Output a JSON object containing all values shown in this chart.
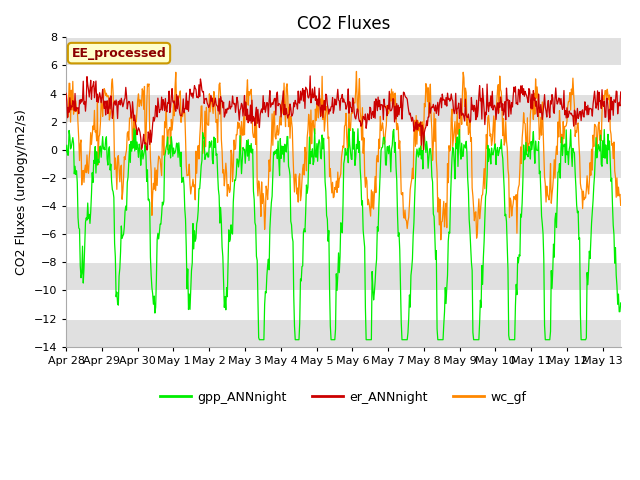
{
  "title": "CO2 Fluxes",
  "ylabel": "CO2 Fluxes (urology/m2/s)",
  "ylim": [
    -14,
    8
  ],
  "yticks": [
    -14,
    -12,
    -10,
    -8,
    -6,
    -4,
    -2,
    0,
    2,
    4,
    6,
    8
  ],
  "xlim_days": [
    0,
    15.5
  ],
  "xtick_labels": [
    "Apr 28",
    "Apr 29",
    "Apr 30",
    "May 1",
    "May 2",
    "May 3",
    "May 4",
    "May 5",
    "May 6",
    "May 7",
    "May 8",
    "May 9",
    "May 10",
    "May 11",
    "May 12",
    "May 13"
  ],
  "xtick_positions": [
    0,
    1,
    2,
    3,
    4,
    5,
    6,
    7,
    8,
    9,
    10,
    11,
    12,
    13,
    14,
    15
  ],
  "colors": {
    "gpp": "#00ee00",
    "er": "#cc0000",
    "wc": "#ff8800"
  },
  "legend_label": "EE_processed",
  "series_labels": [
    "gpp_ANNnight",
    "er_ANNnight",
    "wc_gf"
  ],
  "fig_bg": "#ffffff",
  "plot_bg": "#e0e0e0",
  "band_colors": [
    "#ffffff",
    "#d8d8d8"
  ],
  "title_fontsize": 12,
  "axis_label_fontsize": 9,
  "tick_fontsize": 8,
  "legend_fontsize": 9
}
